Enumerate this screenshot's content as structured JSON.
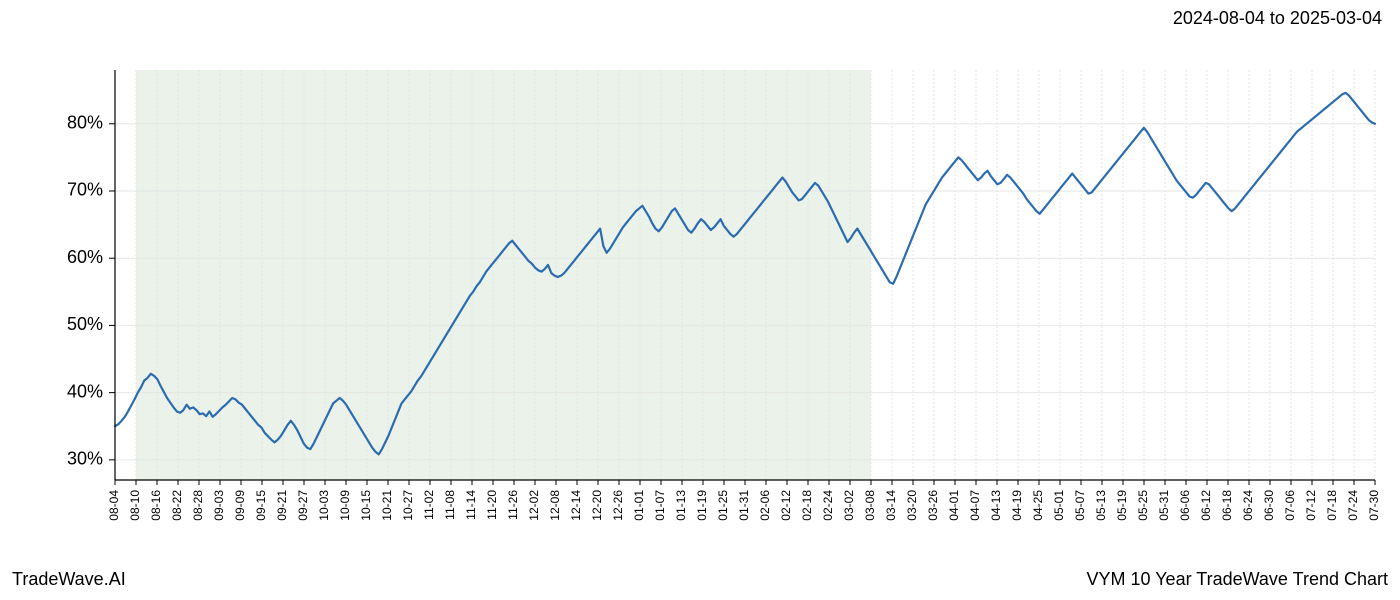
{
  "header": {
    "date_range": "2024-08-04 to 2025-03-04"
  },
  "footer": {
    "brand": "TradeWave.AI",
    "title": "VYM 10 Year TradeWave Trend Chart"
  },
  "chart": {
    "type": "line",
    "background_color": "#ffffff",
    "grid_color": "#e6e6e6",
    "spine_color": "#000000",
    "series_color": "#2b6cb0",
    "shade_color": "#c7dbc0",
    "shade_start_label": "08-10",
    "shade_end_label": "03-08",
    "line_width": 2.2,
    "label_fontsize": 18,
    "xtick_fontsize": 12,
    "ylim": [
      27,
      88
    ],
    "yticks": [
      30,
      40,
      50,
      60,
      70,
      80
    ],
    "ytick_labels": [
      "30%",
      "40%",
      "50%",
      "60%",
      "70%",
      "80%"
    ],
    "x_labels": [
      "08-04",
      "08-10",
      "08-16",
      "08-22",
      "08-28",
      "09-03",
      "09-09",
      "09-15",
      "09-21",
      "09-27",
      "10-03",
      "10-09",
      "10-15",
      "10-21",
      "10-27",
      "11-02",
      "11-08",
      "11-14",
      "11-20",
      "11-26",
      "12-02",
      "12-08",
      "12-14",
      "12-20",
      "12-26",
      "01-01",
      "01-07",
      "01-13",
      "01-19",
      "01-25",
      "01-31",
      "02-06",
      "02-12",
      "02-18",
      "02-24",
      "03-02",
      "03-08",
      "03-14",
      "03-20",
      "03-26",
      "04-01",
      "04-07",
      "04-13",
      "04-19",
      "04-25",
      "05-01",
      "05-07",
      "05-13",
      "05-19",
      "05-25",
      "05-31",
      "06-06",
      "06-12",
      "06-18",
      "06-24",
      "06-30",
      "07-06",
      "07-12",
      "07-18",
      "07-24",
      "07-30"
    ],
    "values": [
      35.0,
      35.3,
      35.8,
      36.4,
      37.2,
      38.1,
      39.0,
      40.0,
      40.8,
      41.8,
      42.2,
      42.8,
      42.5,
      42.0,
      41.0,
      40.1,
      39.2,
      38.5,
      37.8,
      37.2,
      37.0,
      37.4,
      38.2,
      37.6,
      37.8,
      37.4,
      36.8,
      36.9,
      36.5,
      37.2,
      36.4,
      36.8,
      37.3,
      37.8,
      38.2,
      38.7,
      39.2,
      39.0,
      38.5,
      38.2,
      37.6,
      37.0,
      36.4,
      35.8,
      35.2,
      34.8,
      34.0,
      33.5,
      33.0,
      32.6,
      33.0,
      33.6,
      34.4,
      35.2,
      35.8,
      35.2,
      34.4,
      33.4,
      32.4,
      31.8,
      31.6,
      32.4,
      33.4,
      34.4,
      35.4,
      36.4,
      37.4,
      38.4,
      38.8,
      39.2,
      38.8,
      38.2,
      37.4,
      36.6,
      35.8,
      35.0,
      34.2,
      33.4,
      32.6,
      31.8,
      31.2,
      30.8,
      31.6,
      32.6,
      33.6,
      34.8,
      36.0,
      37.2,
      38.4,
      39.0,
      39.6,
      40.2,
      41.0,
      41.8,
      42.4,
      43.2,
      44.0,
      44.8,
      45.6,
      46.4,
      47.2,
      48.0,
      48.8,
      49.6,
      50.4,
      51.2,
      52.0,
      52.8,
      53.6,
      54.4,
      55.0,
      55.8,
      56.4,
      57.2,
      58.0,
      58.6,
      59.2,
      59.8,
      60.4,
      61.0,
      61.6,
      62.2,
      62.6,
      62.0,
      61.4,
      60.8,
      60.2,
      59.6,
      59.2,
      58.6,
      58.2,
      58.0,
      58.4,
      59.0,
      57.8,
      57.4,
      57.2,
      57.4,
      57.8,
      58.4,
      59.0,
      59.6,
      60.2,
      60.8,
      61.4,
      62.0,
      62.6,
      63.2,
      63.8,
      64.4,
      61.8,
      60.8,
      61.4,
      62.2,
      63.0,
      63.8,
      64.6,
      65.2,
      65.8,
      66.4,
      67.0,
      67.4,
      67.8,
      67.0,
      66.2,
      65.2,
      64.4,
      64.0,
      64.6,
      65.4,
      66.2,
      67.0,
      67.4,
      66.6,
      65.8,
      65.0,
      64.2,
      63.8,
      64.4,
      65.2,
      65.8,
      65.4,
      64.8,
      64.2,
      64.6,
      65.2,
      65.8,
      64.8,
      64.2,
      63.6,
      63.2,
      63.6,
      64.2,
      64.8,
      65.4,
      66.0,
      66.6,
      67.2,
      67.8,
      68.4,
      69.0,
      69.6,
      70.2,
      70.8,
      71.4,
      72.0,
      71.4,
      70.6,
      69.8,
      69.2,
      68.6,
      68.8,
      69.4,
      70.0,
      70.6,
      71.2,
      70.8,
      70.0,
      69.2,
      68.4,
      67.4,
      66.4,
      65.4,
      64.4,
      63.4,
      62.4,
      63.0,
      63.8,
      64.4,
      63.6,
      62.8,
      62.0,
      61.2,
      60.4,
      59.6,
      58.8,
      58.0,
      57.2,
      56.4,
      56.2,
      57.2,
      58.4,
      59.6,
      60.8,
      62.0,
      63.2,
      64.4,
      65.6,
      66.8,
      68.0,
      68.8,
      69.6,
      70.4,
      71.2,
      72.0,
      72.6,
      73.2,
      73.8,
      74.4,
      75.0,
      74.6,
      74.0,
      73.4,
      72.8,
      72.2,
      71.6,
      72.0,
      72.6,
      73.0,
      72.2,
      71.6,
      71.0,
      71.2,
      71.8,
      72.4,
      72.0,
      71.4,
      70.8,
      70.2,
      69.6,
      68.8,
      68.2,
      67.6,
      67.0,
      66.6,
      67.2,
      67.8,
      68.4,
      69.0,
      69.6,
      70.2,
      70.8,
      71.4,
      72.0,
      72.6,
      72.0,
      71.4,
      70.8,
      70.2,
      69.6,
      69.8,
      70.4,
      71.0,
      71.6,
      72.2,
      72.8,
      73.4,
      74.0,
      74.6,
      75.2,
      75.8,
      76.4,
      77.0,
      77.6,
      78.2,
      78.8,
      79.4,
      78.8,
      78.0,
      77.2,
      76.4,
      75.6,
      74.8,
      74.0,
      73.2,
      72.4,
      71.6,
      71.0,
      70.4,
      69.8,
      69.2,
      69.0,
      69.4,
      70.0,
      70.6,
      71.2,
      71.0,
      70.4,
      69.8,
      69.2,
      68.6,
      68.0,
      67.4,
      67.0,
      67.4,
      68.0,
      68.6,
      69.2,
      69.8,
      70.4,
      71.0,
      71.6,
      72.2,
      72.8,
      73.4,
      74.0,
      74.6,
      75.2,
      75.8,
      76.4,
      77.0,
      77.6,
      78.2,
      78.8,
      79.2,
      79.6,
      80.0,
      80.4,
      80.8,
      81.2,
      81.6,
      82.0,
      82.4,
      82.8,
      83.2,
      83.6,
      84.0,
      84.4,
      84.6,
      84.2,
      83.6,
      83.0,
      82.4,
      81.8,
      81.2,
      80.6,
      80.2,
      80.0
    ]
  }
}
